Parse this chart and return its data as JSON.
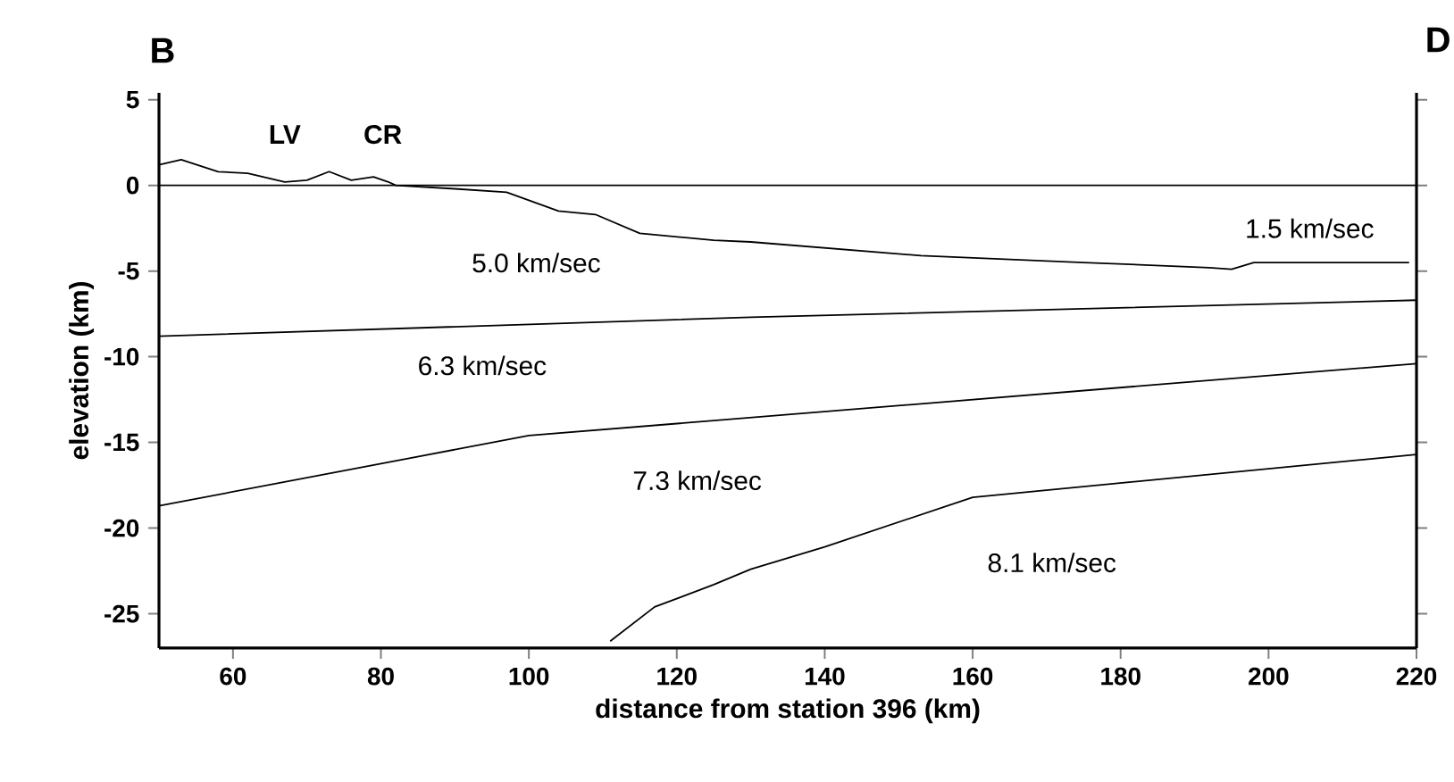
{
  "chart_data": {
    "type": "line",
    "xlabel": "distance from station 396 (km)",
    "ylabel": "elevation (km)",
    "xlim": [
      50,
      220
    ],
    "ylim": [
      -27,
      5.4
    ],
    "xticks": [
      60,
      80,
      100,
      120,
      140,
      160,
      180,
      200,
      220
    ],
    "yticks": [
      -25,
      -20,
      -15,
      -10,
      -5,
      0,
      5
    ],
    "marker": "none",
    "line_style": "solid",
    "grid": false,
    "series": [
      {
        "color": "#000000",
        "x": [
          50,
          53,
          58,
          62,
          67,
          70,
          73,
          76,
          79,
          81,
          82,
          90,
          97,
          104,
          109,
          115,
          125,
          130,
          153,
          175,
          192,
          195,
          198,
          210,
          219
        ],
        "values": [
          1.2,
          1.5,
          0.8,
          0.7,
          0.2,
          0.3,
          0.8,
          0.3,
          0.5,
          0.2,
          0,
          -0.2,
          -0.4,
          -1.5,
          -1.7,
          -2.8,
          -3.2,
          -3.3,
          -4.1,
          -4.5,
          -4.8,
          -4.9,
          -4.5,
          -4.5,
          -4.5
        ]
      },
      {
        "color": "#000000",
        "x": [
          50,
          130,
          220
        ],
        "values": [
          -8.8,
          -7.7,
          -6.7
        ]
      },
      {
        "color": "#000000",
        "x": [
          50,
          100,
          220
        ],
        "values": [
          -18.7,
          -14.6,
          -10.4
        ]
      },
      {
        "color": "#000000",
        "x": [
          111,
          117,
          125,
          130,
          140,
          160,
          220
        ],
        "values": [
          -26.6,
          -24.6,
          -23.3,
          -22.4,
          -21.1,
          -18.2,
          -15.7
        ]
      }
    ],
    "ref_lines": [
      {
        "axis": "y",
        "value": 0,
        "label": null,
        "color": "#000000"
      }
    ],
    "annotations": [
      "B",
      "D",
      "LV",
      "CR",
      "1.5 km/sec",
      "5.0 km/sec",
      "6.3 km/sec",
      "7.3 km/sec",
      "8.1 km/sec"
    ]
  }
}
